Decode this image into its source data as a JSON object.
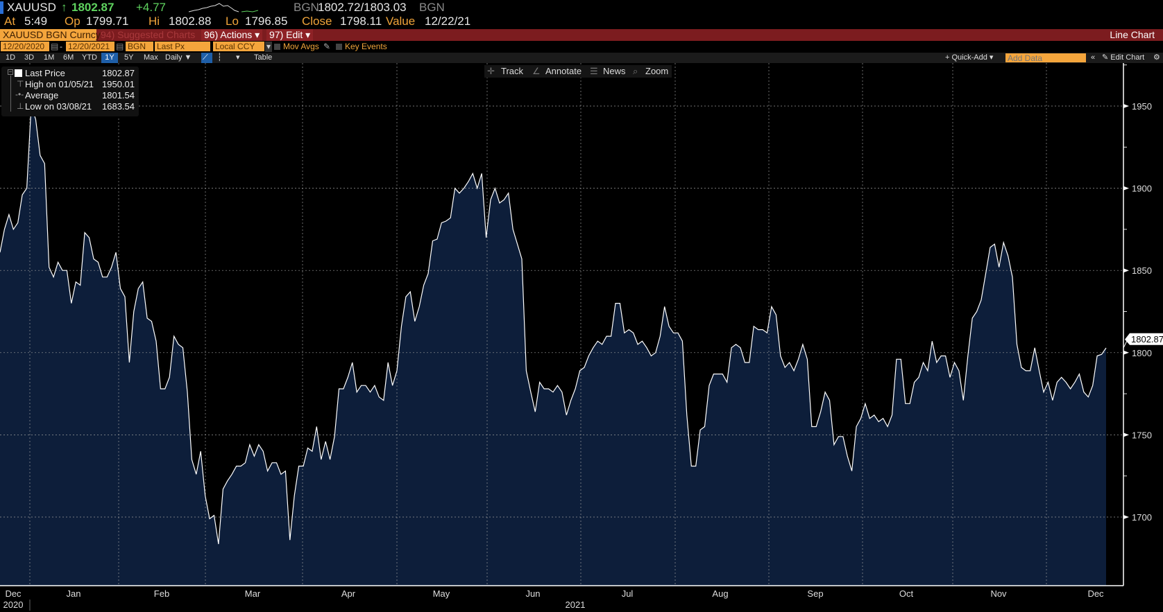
{
  "header": {
    "ticker": "XAUUSD",
    "last_arrow": "↑",
    "last": "1802.87",
    "change": "+4.77",
    "bid_source": "BGN",
    "bid_ask": "1802.72/1803.03",
    "ask_source": "BGN",
    "at_label": "At",
    "at_time": "5:49",
    "op_label": "Op",
    "op": "1799.71",
    "hi_label": "Hi",
    "hi": "1802.88",
    "lo_label": "Lo",
    "lo": "1796.85",
    "close_label": "Close",
    "close": "1798.11",
    "value_label": "Value",
    "value_date": "12/22/21"
  },
  "menubar": {
    "security": "XAUUSD BGN Curncy",
    "suggested": "94) Suggested Charts",
    "actions": "96) Actions ▾",
    "edit": "97) Edit ▾",
    "chart_type": "Line Chart"
  },
  "settings": {
    "start_date": "12/20/2020",
    "end_date": "12/20/2021",
    "source": "BGN",
    "field": "Last Px",
    "currency": "Local CCY",
    "mov_avgs": "Mov Avgs",
    "key_events": "Key Events"
  },
  "toolbar": {
    "periods": [
      "1D",
      "3D",
      "1M",
      "6M",
      "YTD",
      "1Y",
      "5Y",
      "Max"
    ],
    "active_period": "1Y",
    "frequency": "Daily ▼",
    "table": "Table",
    "quick_add": "+ Quick-Add ▾",
    "add_data_placeholder": "Add Data",
    "edit_chart": "Edit Chart"
  },
  "overlay_tools": {
    "track": "Track",
    "annotate": "Annotate",
    "news": "News",
    "zoom": "Zoom"
  },
  "legend": {
    "last_price_label": "Last Price",
    "last_price": "1802.87",
    "high_label": "High on 01/05/21",
    "high": "1950.01",
    "average_label": "Average",
    "average": "1801.54",
    "low_label": "Low on 03/08/21",
    "low": "1683.54"
  },
  "colors": {
    "background": "#000000",
    "area_fill": "#0d1e3a",
    "line": "#ffffff",
    "menubar": "#7c1c1f",
    "input": "#f4a53c",
    "up": "#5fd35f"
  },
  "chart_data": {
    "type": "area",
    "frequency": "Daily",
    "x_range": [
      "12/20/2020",
      "12/20/2021"
    ],
    "ylim": [
      1658,
      1975
    ],
    "yticks": [
      1700,
      1750,
      1800,
      1850,
      1900,
      1950
    ],
    "ytick_labels": [
      "1700",
      "1750",
      "1800",
      "1850",
      "1900",
      "1950"
    ],
    "last_value_label": "1802.87",
    "xtick_labels": [
      "Dec",
      "Jan",
      "Feb",
      "Mar",
      "Apr",
      "May",
      "Jun",
      "Jul",
      "Aug",
      "Sep",
      "Oct",
      "Nov",
      "Dec"
    ],
    "year_labels": [
      "2020",
      "2021"
    ],
    "grid": true,
    "values": [
      1861,
      1875,
      1884,
      1875,
      1879,
      1896,
      1900,
      1950.01,
      1942,
      1920,
      1915,
      1852,
      1846,
      1855,
      1850,
      1850,
      1830,
      1843,
      1841,
      1873,
      1870,
      1857,
      1855,
      1846,
      1846,
      1852,
      1861,
      1839,
      1834,
      1794,
      1825,
      1839,
      1843,
      1821,
      1819,
      1807,
      1778,
      1778,
      1785,
      1810,
      1805,
      1803,
      1776,
      1735,
      1726,
      1740,
      1713,
      1699,
      1701,
      1683.54,
      1717,
      1722,
      1726,
      1731,
      1731,
      1733,
      1744,
      1737,
      1744,
      1740,
      1728,
      1733,
      1733,
      1726,
      1728,
      1686,
      1713,
      1731,
      1731,
      1742,
      1740,
      1755,
      1735,
      1746,
      1735,
      1749,
      1778,
      1778,
      1785,
      1794,
      1776,
      1780,
      1780,
      1776,
      1780,
      1773,
      1771,
      1794,
      1780,
      1789,
      1816,
      1834,
      1837,
      1819,
      1828,
      1841,
      1848,
      1868,
      1869,
      1879,
      1880,
      1882,
      1900,
      1897,
      1900,
      1904,
      1909,
      1900,
      1909,
      1870,
      1893,
      1900,
      1891,
      1893,
      1897,
      1875,
      1866,
      1857,
      1789,
      1776,
      1764,
      1782,
      1778,
      1778,
      1776,
      1780,
      1776,
      1762,
      1771,
      1778,
      1789,
      1791,
      1798,
      1803,
      1807,
      1805,
      1810,
      1810,
      1830,
      1830,
      1812,
      1814,
      1812,
      1805,
      1807,
      1803,
      1798,
      1800,
      1810,
      1828,
      1816,
      1812,
      1812,
      1807,
      1762,
      1731,
      1731,
      1753,
      1755,
      1780,
      1787,
      1787,
      1787,
      1782,
      1803,
      1805,
      1803,
      1794,
      1794,
      1816,
      1814,
      1814,
      1812,
      1828,
      1823,
      1798,
      1791,
      1794,
      1789,
      1796,
      1805,
      1796,
      1755,
      1755,
      1764,
      1776,
      1771,
      1744,
      1749,
      1749,
      1737,
      1728,
      1755,
      1760,
      1769,
      1760,
      1762,
      1758,
      1760,
      1755,
      1762,
      1796,
      1796,
      1769,
      1769,
      1782,
      1785,
      1794,
      1789,
      1807,
      1794,
      1798,
      1798,
      1785,
      1794,
      1789,
      1771,
      1798,
      1821,
      1825,
      1832,
      1848,
      1864,
      1866,
      1852,
      1867,
      1859,
      1846,
      1805,
      1791,
      1789,
      1789,
      1803,
      1789,
      1776,
      1782,
      1771,
      1782,
      1785,
      1782,
      1778,
      1782,
      1787,
      1776,
      1773,
      1780,
      1798,
      1799,
      1802.87
    ]
  }
}
